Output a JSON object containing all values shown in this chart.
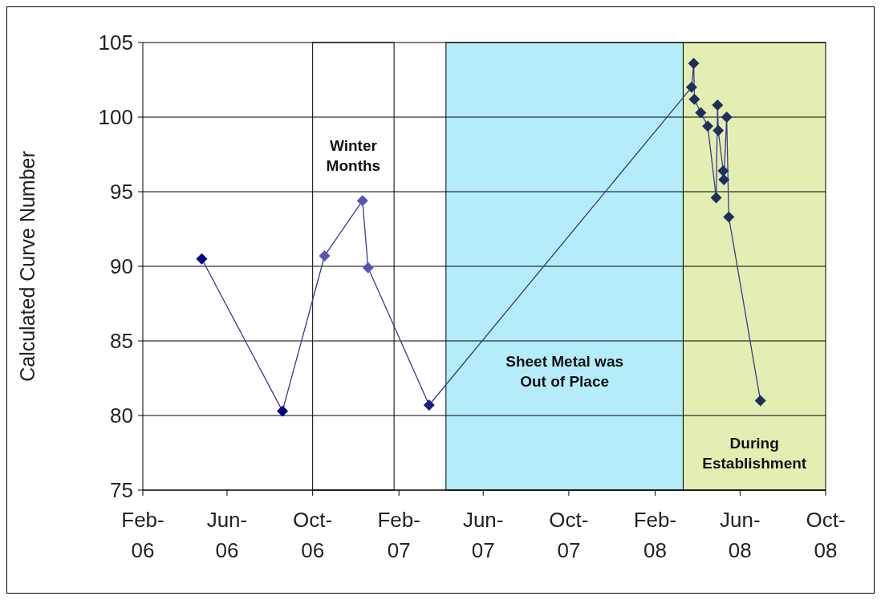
{
  "chart_data": {
    "type": "line",
    "ylabel": "Calculated Curve Number",
    "marker": "diamond",
    "grid": "y",
    "x": [
      "2006-04-26",
      "2006-08-19",
      "2006-10-18",
      "2006-12-11",
      "2006-12-19",
      "2007-03-16",
      "2008-03-24",
      "2008-03-27",
      "2008-03-28",
      "2008-04-06",
      "2008-04-16",
      "2008-04-28",
      "2008-04-30",
      "2008-05-01",
      "2008-05-08",
      "2008-05-09",
      "2008-05-13",
      "2008-05-16",
      "2008-06-30"
    ],
    "series": [
      {
        "color": "#3a3a8c",
        "values": [
          90.5,
          80.3,
          90.7,
          94.4,
          89.9,
          80.7,
          102.0,
          103.6,
          101.2,
          100.3,
          99.4,
          94.6,
          100.8,
          99.1,
          96.4,
          95.8,
          100.0,
          93.3,
          81.0
        ],
        "colors": [
          "#000080",
          "#000080",
          "#5555b5",
          "#5555b5",
          "#5555b5",
          "#1c1c80",
          "#1f2f5c",
          "#1f2f5c",
          "#1f2f5c",
          "#1f2f5c",
          "#1f2f5c",
          "#1f2f5c",
          "#1f2f5c",
          "#1f2f5c",
          "#1f2f5c",
          "#1f2f5c",
          "#1f2f5c",
          "#1f2f5c",
          "#1f2f5c"
        ]
      }
    ],
    "xlim": [
      "2006-02-01",
      "2008-10-01"
    ],
    "xticks": [
      {
        "value": "2006-02-01",
        "label": "Feb-06"
      },
      {
        "value": "2006-06-01",
        "label": "Jun-06"
      },
      {
        "value": "2006-10-01",
        "label": "Oct-06"
      },
      {
        "value": "2007-02-01",
        "label": "Feb-07"
      },
      {
        "value": "2007-06-01",
        "label": "Jun-07"
      },
      {
        "value": "2007-10-01",
        "label": "Oct-07"
      },
      {
        "value": "2008-02-01",
        "label": "Feb-08"
      },
      {
        "value": "2008-06-01",
        "label": "Jun-08"
      },
      {
        "value": "2008-10-01",
        "label": "Oct-08"
      }
    ],
    "ylim": [
      75,
      105
    ],
    "yticks": [
      75,
      80,
      85,
      90,
      95,
      100,
      105
    ],
    "bands": [
      {
        "axis": "x",
        "from": "2006-10-01",
        "to": "2007-01-25",
        "label": "Winter Months",
        "color": "#ffffff"
      },
      {
        "axis": "x",
        "from": "2007-04-09",
        "to": "2008-03-12",
        "label": "Sheet Metal was Out of Place",
        "color": "#b5ecfa"
      },
      {
        "axis": "x",
        "from": "2008-03-12",
        "to": "2008-10-01",
        "label": "During Establishment",
        "color": "#e3efb2"
      }
    ]
  }
}
